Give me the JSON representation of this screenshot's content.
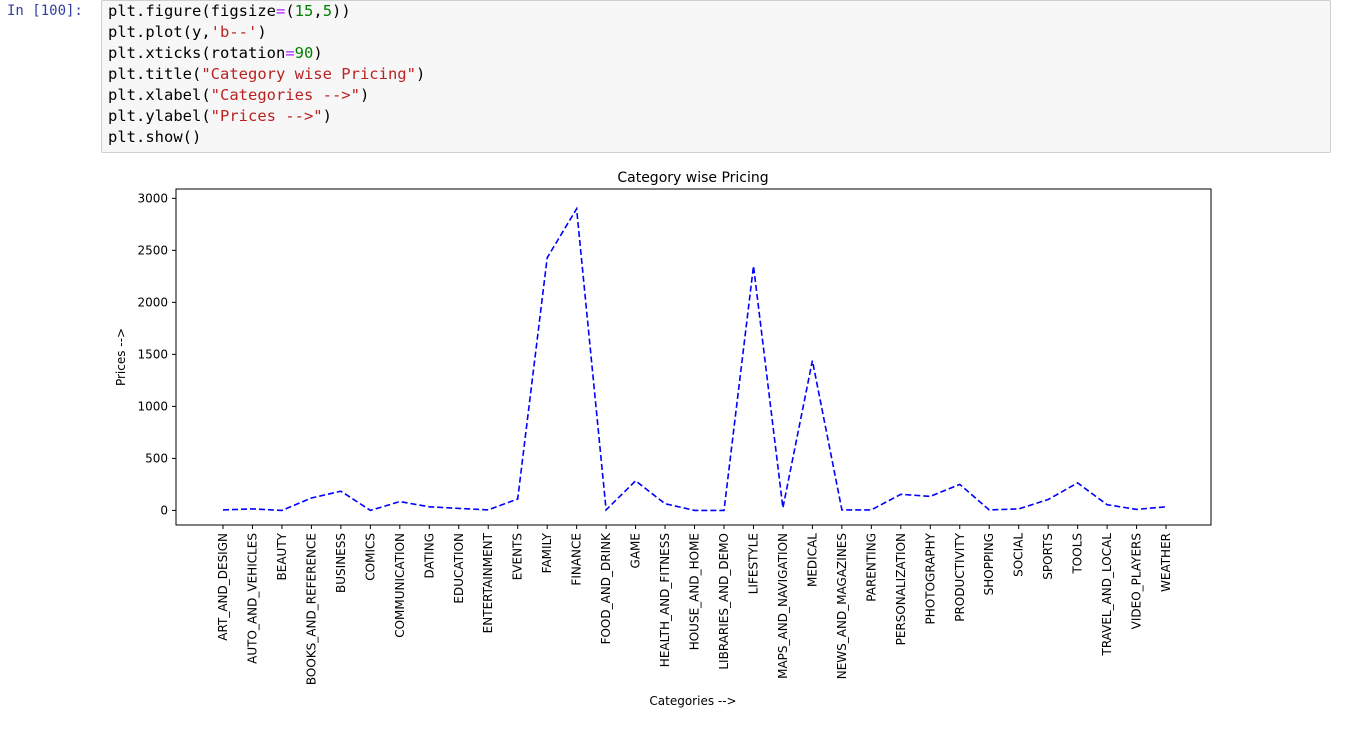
{
  "cell": {
    "prompt": "In [100]:",
    "code_lines": [
      [
        {
          "t": "plt.figure(figsize",
          "c": ""
        },
        {
          "t": "=",
          "c": "op"
        },
        {
          "t": "(",
          "c": ""
        },
        {
          "t": "15",
          "c": "num"
        },
        {
          "t": ",",
          "c": ""
        },
        {
          "t": "5",
          "c": "num"
        },
        {
          "t": "))",
          "c": ""
        }
      ],
      [
        {
          "t": "plt.plot(y,",
          "c": ""
        },
        {
          "t": "'b--'",
          "c": "str"
        },
        {
          "t": ")",
          "c": ""
        }
      ],
      [
        {
          "t": "plt.xticks(rotation",
          "c": ""
        },
        {
          "t": "=",
          "c": "op"
        },
        {
          "t": "90",
          "c": "num"
        },
        {
          "t": ")",
          "c": ""
        }
      ],
      [
        {
          "t": "plt.title(",
          "c": ""
        },
        {
          "t": "\"Category wise Pricing\"",
          "c": "str"
        },
        {
          "t": ")",
          "c": ""
        }
      ],
      [
        {
          "t": "plt.xlabel(",
          "c": ""
        },
        {
          "t": "\"Categories -->\"",
          "c": "str"
        },
        {
          "t": ")",
          "c": ""
        }
      ],
      [
        {
          "t": "plt.ylabel(",
          "c": ""
        },
        {
          "t": "\"Prices -->\"",
          "c": "str"
        },
        {
          "t": ")",
          "c": ""
        }
      ],
      [
        {
          "t": "plt.show()",
          "c": ""
        }
      ]
    ]
  },
  "colors": {
    "line": "#0000ff",
    "prompt": "#303F9F",
    "string": "#BA2121",
    "number": "#008000",
    "operator": "#AA22FF"
  },
  "chart_data": {
    "type": "line",
    "title": "Category wise Pricing",
    "xlabel": "Categories -->",
    "ylabel": "Prices -->",
    "line_style": "dashed",
    "grid": false,
    "ylim": [
      -140,
      3090
    ],
    "yticks": [
      0,
      500,
      1000,
      1500,
      2000,
      2500,
      3000
    ],
    "categories": [
      "ART_AND_DESIGN",
      "AUTO_AND_VEHICLES",
      "BEAUTY",
      "BOOKS_AND_REFERENCE",
      "BUSINESS",
      "COMICS",
      "COMMUNICATION",
      "DATING",
      "EDUCATION",
      "ENTERTAINMENT",
      "EVENTS",
      "FAMILY",
      "FINANCE",
      "FOOD_AND_DRINK",
      "GAME",
      "HEALTH_AND_FITNESS",
      "HOUSE_AND_HOME",
      "LIBRARIES_AND_DEMO",
      "LIFESTYLE",
      "MAPS_AND_NAVIGATION",
      "MEDICAL",
      "NEWS_AND_MAGAZINES",
      "PARENTING",
      "PERSONALIZATION",
      "PHOTOGRAPHY",
      "PRODUCTIVITY",
      "SHOPPING",
      "SOCIAL",
      "SPORTS",
      "TOOLS",
      "TRAVEL_AND_LOCAL",
      "VIDEO_PLAYERS",
      "WEATHER"
    ],
    "series": [
      {
        "values": [
          5,
          15,
          0,
          120,
          185,
          0,
          85,
          35,
          20,
          5,
          110,
          2430,
          2900,
          5,
          285,
          65,
          0,
          0,
          2350,
          25,
          1440,
          5,
          5,
          155,
          135,
          250,
          5,
          15,
          105,
          265,
          55,
          10,
          35
        ]
      }
    ]
  }
}
